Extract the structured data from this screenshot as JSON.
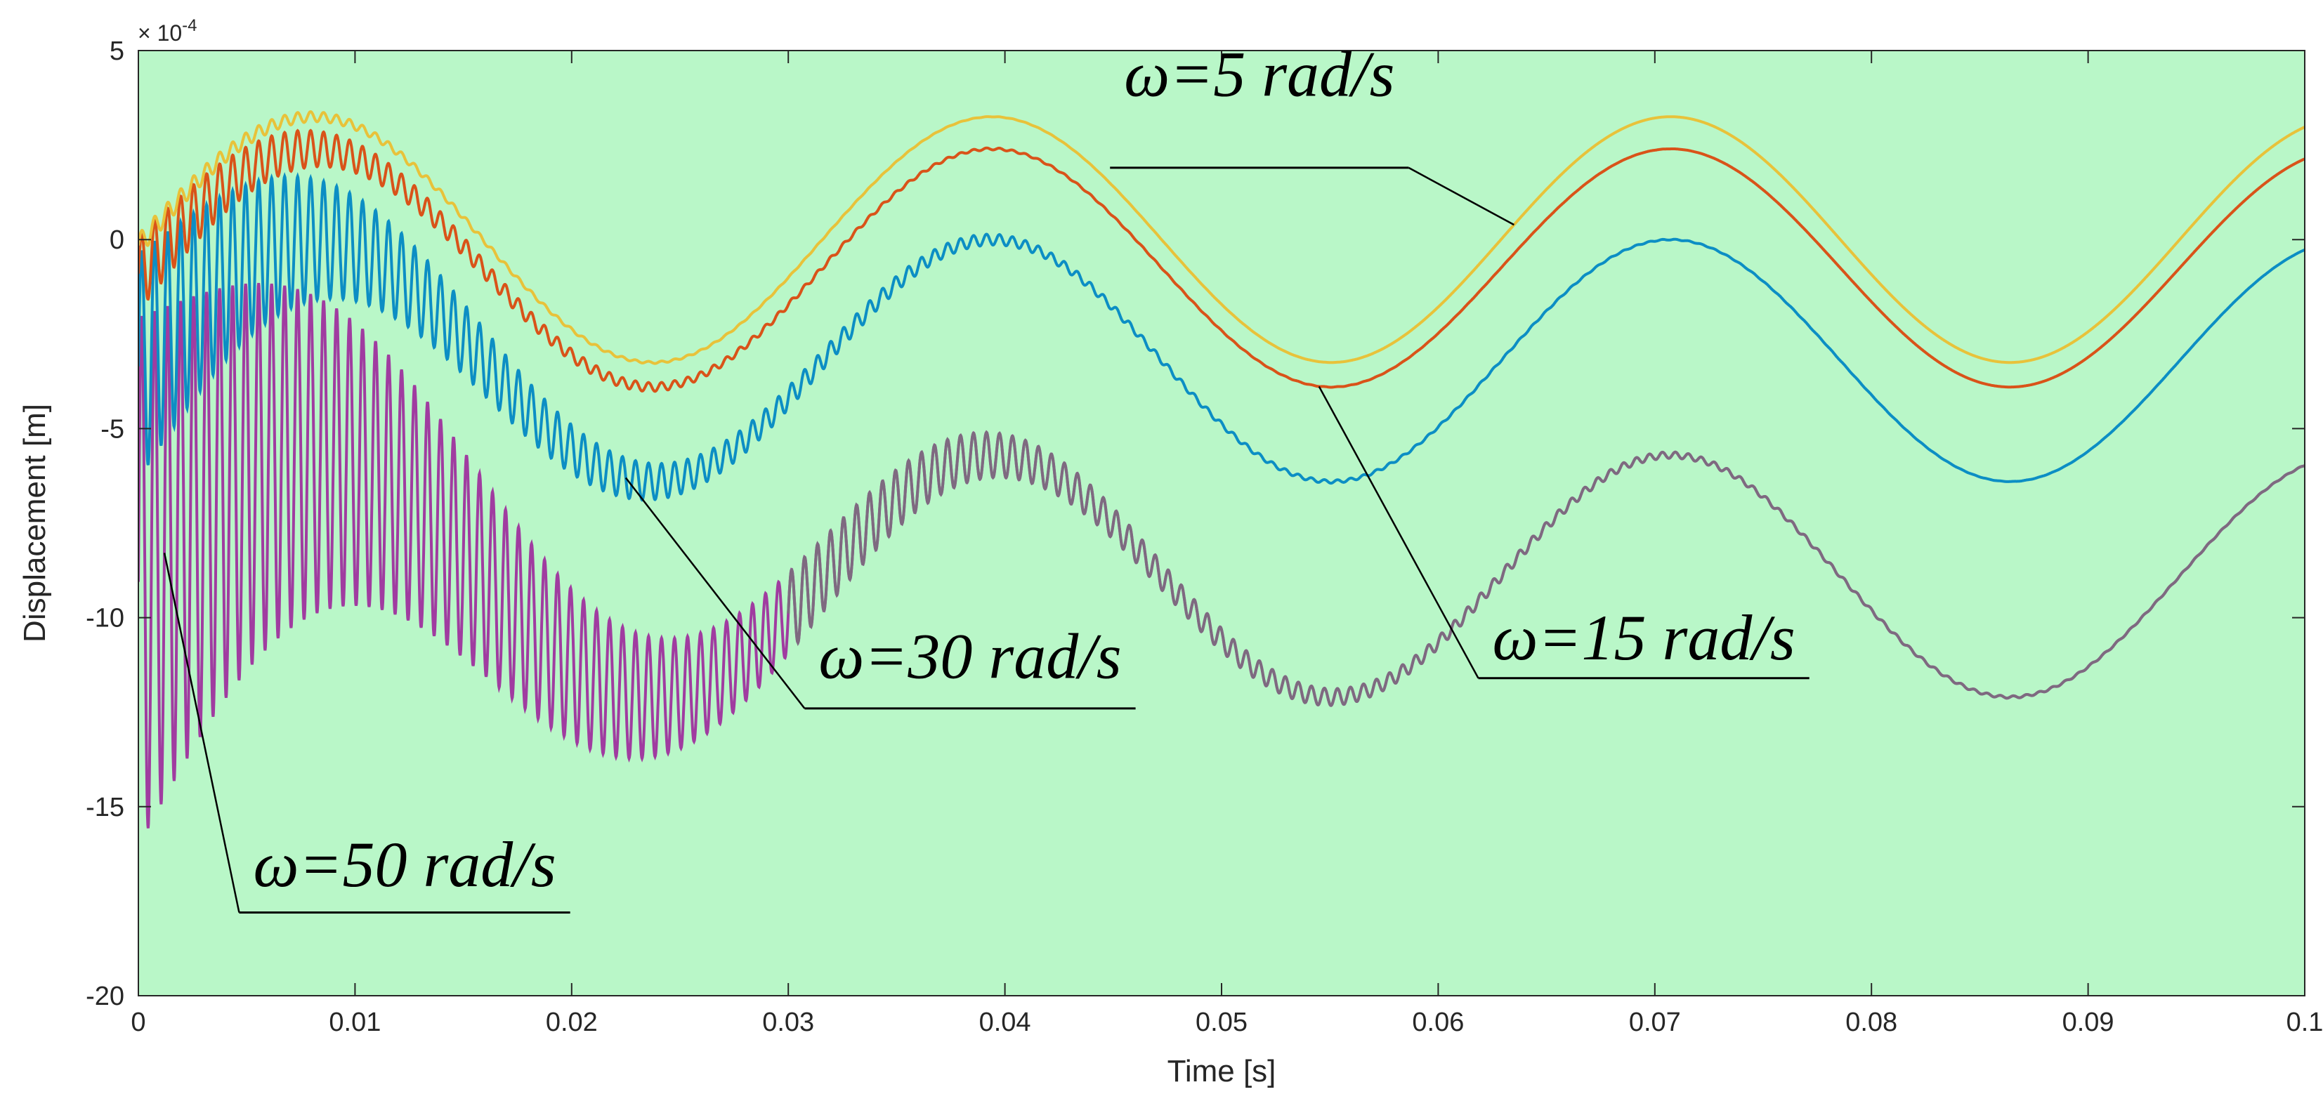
{
  "chart_data": {
    "type": "line",
    "title": "",
    "xlabel": "Time [s]",
    "ylabel": "Displacement [m]",
    "y_multiplier_label": "× 10^-4",
    "y_multiplier_base": "× 10",
    "y_multiplier_exp": "-4",
    "xlim": [
      0,
      0.1
    ],
    "ylim": [
      -20,
      5
    ],
    "x_ticks": [
      0,
      0.01,
      0.02,
      0.03,
      0.04,
      0.05,
      0.06,
      0.07,
      0.08,
      0.09,
      0.1
    ],
    "x_tick_labels": [
      "0",
      "0.01",
      "0.02",
      "0.03",
      "0.04",
      "0.05",
      "0.06",
      "0.07",
      "0.08",
      "0.09",
      "0.1"
    ],
    "y_ticks": [
      -20,
      -15,
      -10,
      -5,
      0,
      5
    ],
    "y_tick_labels": [
      "-20",
      "-15",
      "-10",
      "-5",
      "0",
      "5"
    ],
    "grid": false,
    "background_color": "#b9f7c8",
    "series": [
      {
        "name": "ω=5 rad/s",
        "color": "#e8c23a",
        "amplitude": 3.25,
        "offset": 0.0,
        "period": 0.03133,
        "transient_amp": 0.3,
        "transient_decay": 0.01,
        "transient_period": 0.0006
      },
      {
        "name": "ω=15 rad/s",
        "color": "#d95319",
        "amplitude": 3.15,
        "offset": -0.75,
        "period": 0.03133,
        "transient_amp": 1.0,
        "transient_decay": 0.011,
        "transient_period": 0.0006
      },
      {
        "name": "ω=30 rad/s",
        "color": "#0c8ec4",
        "amplitude": 3.2,
        "offset": -3.2,
        "period": 0.03133,
        "transient_amp": 3.0,
        "transient_decay": 0.013,
        "transient_period": 0.0006
      },
      {
        "name": "ω=50 rad/s",
        "color": "#a03ca0",
        "tail_color": "#7e6a80",
        "amplitude": 3.2,
        "offset": -8.9,
        "period": 0.03133,
        "transient_amp": 7.0,
        "transient_decay": 0.016,
        "transient_period": 0.0006
      }
    ],
    "annotations": [
      {
        "text": "ω=5 rad/s",
        "target_series": 0,
        "target_x": 0.0635,
        "text_x": 0.0455,
        "text_y": 3.8,
        "label_y": 1.9
      },
      {
        "text": "ω=15 rad/s",
        "target_series": 1,
        "target_x": 0.0545,
        "text_x": 0.0625,
        "text_y": -11.1,
        "label_y": -11.6
      },
      {
        "text": "ω=30 rad/s",
        "target_series": 2,
        "target_x": 0.0225,
        "text_x": 0.0314,
        "text_y": -11.6,
        "label_y": -12.4
      },
      {
        "text": "ω=50 rad/s",
        "target_series": 3,
        "target_x": 0.0012,
        "text_x": 0.0053,
        "text_y": -17.1,
        "label_y": -17.8
      }
    ]
  }
}
